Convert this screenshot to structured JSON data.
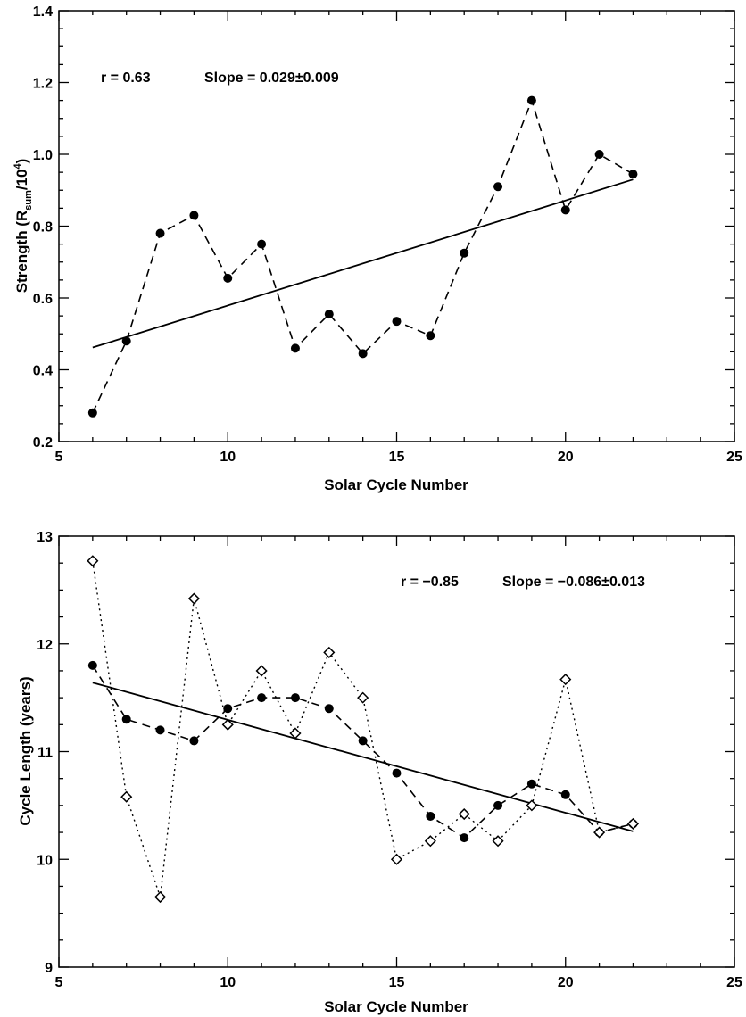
{
  "chart_data": [
    {
      "type": "line",
      "xlabel": "Solar Cycle Number",
      "ylabel_main": "Strength (R",
      "ylabel_sub": "sum",
      "ylabel_mid": "/10",
      "ylabel_sup": "4",
      "ylabel_end": ")",
      "xlim": [
        5,
        25
      ],
      "ylim": [
        0.2,
        1.4
      ],
      "xticks": [
        5,
        10,
        15,
        20,
        25
      ],
      "yticks": [
        0.2,
        0.4,
        0.6,
        0.8,
        1.0,
        1.2,
        1.4
      ],
      "ytick_labels": [
        "0.2",
        "0.4",
        "0.6",
        "0.8",
        "1.0",
        "1.2",
        "1.4"
      ],
      "grid": false,
      "annotations": [
        "r =  0.63",
        "Slope =  0.029±0.009"
      ],
      "series": [
        {
          "style": "dashed",
          "marker": "filled-circle",
          "x": [
            6,
            7,
            8,
            9,
            10,
            11,
            12,
            13,
            14,
            15,
            16,
            17,
            18,
            19,
            20,
            21,
            22
          ],
          "y": [
            0.28,
            0.48,
            0.78,
            0.83,
            0.655,
            0.75,
            0.46,
            0.555,
            0.445,
            0.535,
            0.495,
            0.725,
            0.91,
            1.15,
            0.845,
            1.0,
            0.945
          ]
        }
      ],
      "fit_line": {
        "x": [
          6,
          22
        ],
        "y": [
          0.462,
          0.93
        ]
      }
    },
    {
      "type": "line",
      "xlabel": "Solar Cycle Number",
      "ylabel": "Cycle Length (years)",
      "xlim": [
        5,
        25
      ],
      "ylim": [
        9,
        13
      ],
      "xticks": [
        5,
        10,
        15,
        20,
        25
      ],
      "yticks": [
        9,
        10,
        11,
        12,
        13
      ],
      "ytick_labels": [
        "9",
        "10",
        "11",
        "12",
        "13"
      ],
      "grid": false,
      "annotations": [
        "r = −0.85",
        "Slope = −0.086±0.013"
      ],
      "series": [
        {
          "style": "dashed",
          "marker": "filled-circle",
          "x": [
            6,
            7,
            8,
            9,
            10,
            11,
            12,
            13,
            14,
            15,
            16,
            17,
            18,
            19,
            20,
            21,
            22
          ],
          "y": [
            11.8,
            11.3,
            11.2,
            11.1,
            11.4,
            11.5,
            11.5,
            11.4,
            11.1,
            10.8,
            10.4,
            10.2,
            10.5,
            10.7,
            10.6,
            10.25,
            10.33
          ]
        },
        {
          "style": "dotted",
          "marker": "open-diamond",
          "x": [
            6,
            7,
            8,
            9,
            10,
            11,
            12,
            13,
            14,
            15,
            16,
            17,
            18,
            19,
            20,
            21,
            22
          ],
          "y": [
            12.77,
            10.58,
            9.65,
            12.42,
            11.25,
            11.75,
            11.17,
            11.92,
            11.5,
            10.0,
            10.17,
            10.42,
            10.17,
            10.5,
            11.67,
            10.25,
            10.33
          ]
        }
      ],
      "fit_line": {
        "x": [
          6,
          22
        ],
        "y": [
          11.64,
          10.26
        ]
      }
    }
  ]
}
